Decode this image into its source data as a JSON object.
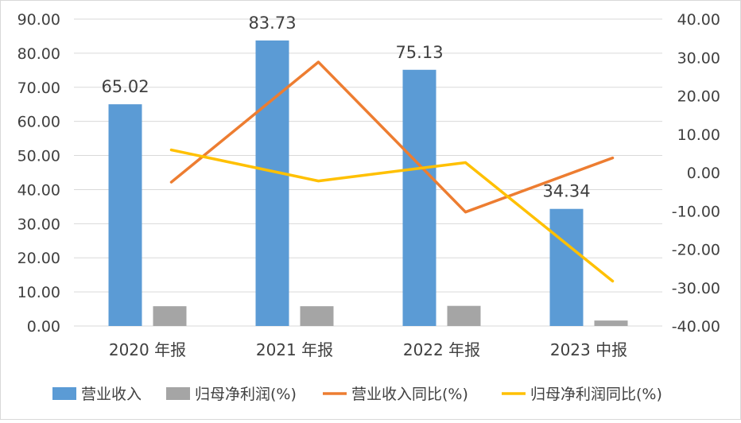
{
  "chart_data": {
    "type": "bar",
    "categories": [
      "2020 年报",
      "2021 年报",
      "2022 年报",
      "2023 中报"
    ],
    "bar_series": [
      {
        "name": "营业收入",
        "values": [
          65.02,
          83.73,
          75.13,
          34.34
        ],
        "color": "#5b9bd5",
        "labels": [
          "65.02",
          "83.73",
          "75.13",
          "34.34"
        ]
      },
      {
        "name": "归母净利润(%)",
        "values": [
          5.8,
          5.8,
          5.9,
          1.6
        ],
        "color": "#a5a5a5"
      }
    ],
    "line_series": [
      {
        "name": "营业收入同比(%)",
        "values": [
          -2.5,
          28.8,
          -10.3,
          3.8
        ],
        "color": "#ed7d31"
      },
      {
        "name": "归母净利润同比(%)",
        "values": [
          5.9,
          -2.2,
          2.6,
          -28.3
        ],
        "color": "#ffc000"
      }
    ],
    "y_left": {
      "min": 0,
      "max": 90,
      "step": 10,
      "ticks": [
        "0.00",
        "10.00",
        "20.00",
        "30.00",
        "40.00",
        "50.00",
        "60.00",
        "70.00",
        "80.00",
        "90.00"
      ]
    },
    "y_right": {
      "min": -40,
      "max": 40,
      "step": 10,
      "ticks": [
        "-40.00",
        "-30.00",
        "-20.00",
        "-10.00",
        "0.00",
        "10.00",
        "20.00",
        "30.00",
        "40.00"
      ]
    },
    "grid": true,
    "legend_position": "bottom"
  }
}
